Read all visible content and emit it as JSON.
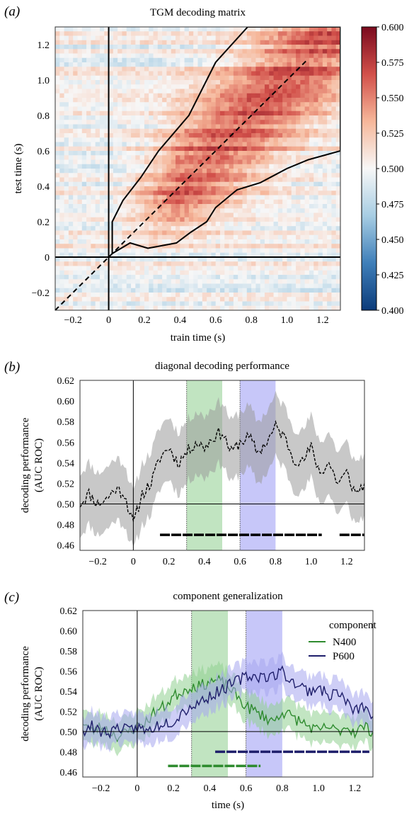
{
  "chart_data": [
    {
      "panel": "(a)",
      "type": "heatmap",
      "title": "TGM decoding matrix",
      "xlabel": "train time (s)",
      "ylabel": "test time (s)",
      "xlim": [
        -0.3,
        1.3
      ],
      "ylim": [
        -0.3,
        1.3
      ],
      "xticks": [
        -0.2,
        0,
        0.2,
        0.4,
        0.6,
        0.8,
        1.0,
        1.2
      ],
      "xtick_labels": [
        "−0.2",
        "0",
        "0.2",
        "0.4",
        "0.6",
        "0.8",
        "1.0",
        "1.2"
      ],
      "yticks": [
        -0.2,
        0,
        0.2,
        0.4,
        0.6,
        0.8,
        1.0,
        1.2
      ],
      "ytick_labels": [
        "−0.2",
        "0",
        "0.2",
        "0.4",
        "0.6",
        "0.8",
        "1.0",
        "1.2"
      ],
      "colorbar": {
        "min": 0.4,
        "max": 0.6,
        "ticks": [
          0.4,
          0.425,
          0.45,
          0.475,
          0.5,
          0.525,
          0.55,
          0.575,
          0.6
        ],
        "tick_labels": [
          "0.400",
          "0.425",
          "0.450",
          "0.475",
          "0.500",
          "0.525",
          "0.550",
          "0.575",
          "0.600"
        ],
        "colors": [
          "#0b3b7a",
          "#3f7fb9",
          "#a7cde3",
          "#f7f7f7",
          "#f6b79a",
          "#d2504a",
          "#7a0a1e"
        ]
      },
      "significant_region_outline": [
        [
          0.02,
          0.02
        ],
        [
          0.12,
          0.08
        ],
        [
          0.22,
          0.05
        ],
        [
          0.38,
          0.08
        ],
        [
          0.46,
          0.14
        ],
        [
          0.55,
          0.2
        ],
        [
          0.6,
          0.28
        ],
        [
          0.72,
          0.38
        ],
        [
          0.85,
          0.42
        ],
        [
          1.0,
          0.5
        ],
        [
          1.12,
          0.55
        ],
        [
          1.3,
          0.6
        ],
        [
          1.3,
          1.3
        ],
        [
          0.78,
          1.3
        ],
        [
          0.6,
          1.1
        ],
        [
          0.45,
          0.8
        ],
        [
          0.28,
          0.6
        ],
        [
          0.18,
          0.45
        ],
        [
          0.08,
          0.32
        ],
        [
          0.02,
          0.2
        ]
      ]
    },
    {
      "panel": "(b)",
      "type": "line",
      "title": "diagonal decoding performance",
      "xlabel": "",
      "ylabel": "decoding performance\n(AUC ROC)",
      "xlim": [
        -0.3,
        1.3
      ],
      "ylim": [
        0.455,
        0.62
      ],
      "xticks": [
        -0.2,
        0,
        0.2,
        0.4,
        0.6,
        0.8,
        1.0,
        1.2
      ],
      "xtick_labels": [
        "−0.2",
        "0",
        "0.2",
        "0.4",
        "0.6",
        "0.8",
        "1.0",
        "1.2"
      ],
      "yticks": [
        0.46,
        0.48,
        0.5,
        0.52,
        0.54,
        0.56,
        0.58,
        0.6,
        0.62
      ],
      "ytick_labels": [
        "0.46",
        "0.48",
        "0.50",
        "0.52",
        "0.54",
        "0.56",
        "0.58",
        "0.60",
        "0.62"
      ],
      "shaded_windows": [
        {
          "label": "N400",
          "range": [
            0.3,
            0.5
          ],
          "color": "#5cb85c"
        },
        {
          "label": "P600",
          "range": [
            0.6,
            0.8
          ],
          "color": "#6b6bf0"
        }
      ],
      "series": [
        {
          "color": "#000000",
          "x": [
            -0.3,
            -0.25,
            -0.2,
            -0.15,
            -0.1,
            -0.05,
            0.0,
            0.05,
            0.1,
            0.15,
            0.2,
            0.25,
            0.3,
            0.35,
            0.4,
            0.45,
            0.5,
            0.55,
            0.6,
            0.65,
            0.7,
            0.75,
            0.8,
            0.85,
            0.9,
            0.95,
            1.0,
            1.05,
            1.1,
            1.15,
            1.2,
            1.25,
            1.3
          ],
          "y": [
            0.5,
            0.51,
            0.5,
            0.505,
            0.515,
            0.51,
            0.48,
            0.51,
            0.52,
            0.545,
            0.555,
            0.54,
            0.55,
            0.56,
            0.555,
            0.565,
            0.57,
            0.55,
            0.56,
            0.565,
            0.55,
            0.56,
            0.575,
            0.565,
            0.545,
            0.54,
            0.555,
            0.53,
            0.54,
            0.52,
            0.53,
            0.51,
            0.52
          ],
          "ci_low": [
            0.47,
            0.48,
            0.47,
            0.475,
            0.485,
            0.48,
            0.455,
            0.48,
            0.49,
            0.515,
            0.525,
            0.51,
            0.52,
            0.53,
            0.525,
            0.535,
            0.54,
            0.52,
            0.53,
            0.535,
            0.52,
            0.53,
            0.545,
            0.535,
            0.515,
            0.51,
            0.525,
            0.5,
            0.51,
            0.49,
            0.5,
            0.48,
            0.49
          ],
          "ci_high": [
            0.53,
            0.54,
            0.53,
            0.535,
            0.545,
            0.54,
            0.51,
            0.54,
            0.55,
            0.575,
            0.585,
            0.57,
            0.58,
            0.59,
            0.585,
            0.595,
            0.6,
            0.58,
            0.59,
            0.595,
            0.58,
            0.59,
            0.605,
            0.595,
            0.575,
            0.57,
            0.585,
            0.56,
            0.57,
            0.55,
            0.56,
            0.54,
            0.55
          ]
        }
      ],
      "significance_bars": [
        {
          "color": "#000000",
          "y": 0.47,
          "ranges": [
            [
              0.15,
              1.06
            ],
            [
              1.16,
              1.3
            ]
          ]
        }
      ]
    },
    {
      "panel": "(c)",
      "type": "line",
      "title": "component generalization",
      "xlabel": "time (s)",
      "ylabel": "decoding performance\n(AUC ROC)",
      "xlim": [
        -0.3,
        1.3
      ],
      "ylim": [
        0.455,
        0.62
      ],
      "xticks": [
        -0.2,
        0,
        0.2,
        0.4,
        0.6,
        0.8,
        1.0,
        1.2
      ],
      "xtick_labels": [
        "−0.2",
        "0",
        "0.2",
        "0.4",
        "0.6",
        "0.8",
        "1.0",
        "1.2"
      ],
      "yticks": [
        0.46,
        0.48,
        0.5,
        0.52,
        0.54,
        0.56,
        0.58,
        0.6,
        0.62
      ],
      "ytick_labels": [
        "0.46",
        "0.48",
        "0.50",
        "0.52",
        "0.54",
        "0.56",
        "0.58",
        "0.60",
        "0.62"
      ],
      "shaded_windows": [
        {
          "label": "N400",
          "range": [
            0.3,
            0.5
          ],
          "color": "#5cb85c"
        },
        {
          "label": "P600",
          "range": [
            0.6,
            0.8
          ],
          "color": "#6b6bf0"
        }
      ],
      "legend": {
        "title": "component",
        "position": "top-right"
      },
      "series": [
        {
          "name": "N400",
          "color": "#2e8b2e",
          "band_color": "#90d090",
          "x": [
            -0.3,
            -0.25,
            -0.2,
            -0.15,
            -0.1,
            -0.05,
            0.0,
            0.05,
            0.1,
            0.15,
            0.2,
            0.25,
            0.3,
            0.35,
            0.4,
            0.45,
            0.5,
            0.55,
            0.6,
            0.65,
            0.7,
            0.75,
            0.8,
            0.85,
            0.9,
            0.95,
            1.0,
            1.05,
            1.1,
            1.15,
            1.2,
            1.25,
            1.3
          ],
          "y": [
            0.51,
            0.5,
            0.505,
            0.5,
            0.495,
            0.5,
            0.505,
            0.51,
            0.52,
            0.525,
            0.535,
            0.54,
            0.545,
            0.545,
            0.55,
            0.55,
            0.545,
            0.535,
            0.525,
            0.52,
            0.515,
            0.51,
            0.52,
            0.515,
            0.51,
            0.505,
            0.5,
            0.505,
            0.5,
            0.505,
            0.5,
            0.505,
            0.5
          ],
          "ci_low": [
            0.495,
            0.485,
            0.49,
            0.485,
            0.48,
            0.485,
            0.49,
            0.495,
            0.505,
            0.51,
            0.52,
            0.525,
            0.53,
            0.53,
            0.535,
            0.535,
            0.53,
            0.52,
            0.51,
            0.505,
            0.5,
            0.495,
            0.505,
            0.5,
            0.495,
            0.49,
            0.485,
            0.49,
            0.485,
            0.49,
            0.485,
            0.49,
            0.485
          ],
          "ci_high": [
            0.525,
            0.515,
            0.52,
            0.515,
            0.51,
            0.515,
            0.52,
            0.525,
            0.535,
            0.54,
            0.55,
            0.555,
            0.56,
            0.56,
            0.565,
            0.565,
            0.56,
            0.55,
            0.54,
            0.535,
            0.53,
            0.525,
            0.535,
            0.53,
            0.525,
            0.52,
            0.515,
            0.52,
            0.515,
            0.52,
            0.515,
            0.52,
            0.515
          ]
        },
        {
          "name": "P600",
          "color": "#1f1f6b",
          "band_color": "#a6a6ee",
          "x": [
            -0.3,
            -0.25,
            -0.2,
            -0.15,
            -0.1,
            -0.05,
            0.0,
            0.05,
            0.1,
            0.15,
            0.2,
            0.25,
            0.3,
            0.35,
            0.4,
            0.45,
            0.5,
            0.55,
            0.6,
            0.65,
            0.7,
            0.75,
            0.8,
            0.85,
            0.9,
            0.95,
            1.0,
            1.05,
            1.1,
            1.15,
            1.2,
            1.25,
            1.3
          ],
          "y": [
            0.5,
            0.505,
            0.5,
            0.5,
            0.505,
            0.5,
            0.505,
            0.5,
            0.505,
            0.51,
            0.51,
            0.52,
            0.525,
            0.53,
            0.535,
            0.54,
            0.545,
            0.55,
            0.555,
            0.555,
            0.555,
            0.555,
            0.56,
            0.55,
            0.545,
            0.54,
            0.545,
            0.535,
            0.54,
            0.53,
            0.52,
            0.525,
            0.515
          ],
          "ci_low": [
            0.485,
            0.49,
            0.485,
            0.485,
            0.49,
            0.485,
            0.49,
            0.485,
            0.49,
            0.495,
            0.495,
            0.505,
            0.51,
            0.515,
            0.52,
            0.525,
            0.53,
            0.535,
            0.54,
            0.54,
            0.54,
            0.54,
            0.545,
            0.535,
            0.53,
            0.525,
            0.53,
            0.52,
            0.525,
            0.515,
            0.505,
            0.51,
            0.5
          ],
          "ci_high": [
            0.515,
            0.52,
            0.515,
            0.515,
            0.52,
            0.515,
            0.52,
            0.515,
            0.52,
            0.525,
            0.525,
            0.535,
            0.54,
            0.545,
            0.55,
            0.555,
            0.56,
            0.565,
            0.57,
            0.57,
            0.57,
            0.57,
            0.575,
            0.565,
            0.56,
            0.555,
            0.56,
            0.55,
            0.555,
            0.545,
            0.535,
            0.54,
            0.53
          ]
        }
      ],
      "significance_bars": [
        {
          "color": "#1f1f6b",
          "y": 0.48,
          "ranges": [
            [
              0.43,
              1.28
            ]
          ]
        },
        {
          "color": "#2e8b2e",
          "y": 0.466,
          "ranges": [
            [
              0.17,
              0.68
            ]
          ]
        }
      ]
    }
  ]
}
